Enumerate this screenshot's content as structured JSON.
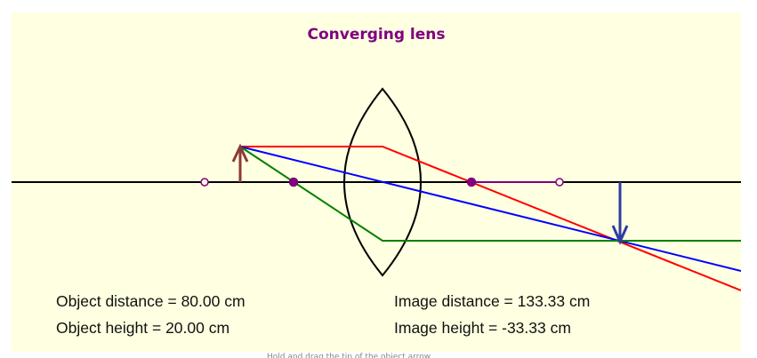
{
  "title": "Converging lens",
  "readouts": {
    "object_distance": "Object distance = 80.00 cm",
    "object_height": "Object height = 20.00 cm",
    "image_distance": "Image distance = 133.33 cm",
    "image_height": "Image height = -33.33 cm"
  },
  "hint": "Hold and drag the tip of the object arrow",
  "colors": {
    "title": "#800080",
    "panel_bg": "#ffffe1",
    "axis": "#000000",
    "lens": "#000000",
    "object_arrow": "#8b3a3a",
    "image_arrow": "#2f3da3",
    "ray_parallel": "#ff0000",
    "ray_center": "#0000ff",
    "ray_focal": "#008000",
    "focal_points": "#800080"
  }
}
